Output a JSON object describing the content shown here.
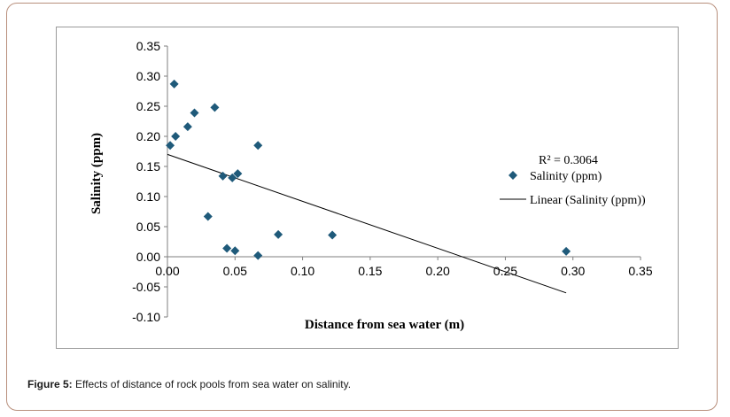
{
  "chart_data": {
    "type": "scatter",
    "title": "",
    "xlabel": "Distance from sea water (m)",
    "ylabel": "Salinity (ppm)",
    "xlim": [
      0,
      0.35
    ],
    "ylim": [
      -0.1,
      0.35
    ],
    "x_ticks": [
      "0.00",
      "0.05",
      "0.10",
      "0.15",
      "0.20",
      "0.25",
      "0.30",
      "0.35"
    ],
    "y_ticks": [
      "0.35",
      "0.30",
      "0.25",
      "0.20",
      "0.15",
      "0.10",
      "0.05",
      "0.00",
      "-0.05",
      "-0.10"
    ],
    "series": [
      {
        "name": "Salinity (ppm)",
        "color": "#1f5a7a",
        "marker": "diamond",
        "points": [
          {
            "x": 0.002,
            "y": 0.185
          },
          {
            "x": 0.005,
            "y": 0.287
          },
          {
            "x": 0.006,
            "y": 0.2
          },
          {
            "x": 0.015,
            "y": 0.216
          },
          {
            "x": 0.02,
            "y": 0.239
          },
          {
            "x": 0.03,
            "y": 0.067
          },
          {
            "x": 0.035,
            "y": 0.248
          },
          {
            "x": 0.041,
            "y": 0.134
          },
          {
            "x": 0.044,
            "y": 0.014
          },
          {
            "x": 0.048,
            "y": 0.131
          },
          {
            "x": 0.05,
            "y": 0.01
          },
          {
            "x": 0.052,
            "y": 0.138
          },
          {
            "x": 0.067,
            "y": 0.185
          },
          {
            "x": 0.067,
            "y": 0.002
          },
          {
            "x": 0.082,
            "y": 0.037
          },
          {
            "x": 0.122,
            "y": 0.036
          },
          {
            "x": 0.295,
            "y": 0.009
          }
        ]
      }
    ],
    "trendline": {
      "name": "Linear (Salinity (ppm))",
      "type": "linear",
      "x_start": 0.0,
      "y_start": 0.17,
      "x_end": 0.295,
      "y_end": -0.06,
      "r_squared_label": "R² = 0.3064"
    },
    "legend_position": "right",
    "grid": false
  },
  "caption": {
    "label": "Figure 5:",
    "text": " Effects of distance of rock pools from sea water on salinity."
  }
}
